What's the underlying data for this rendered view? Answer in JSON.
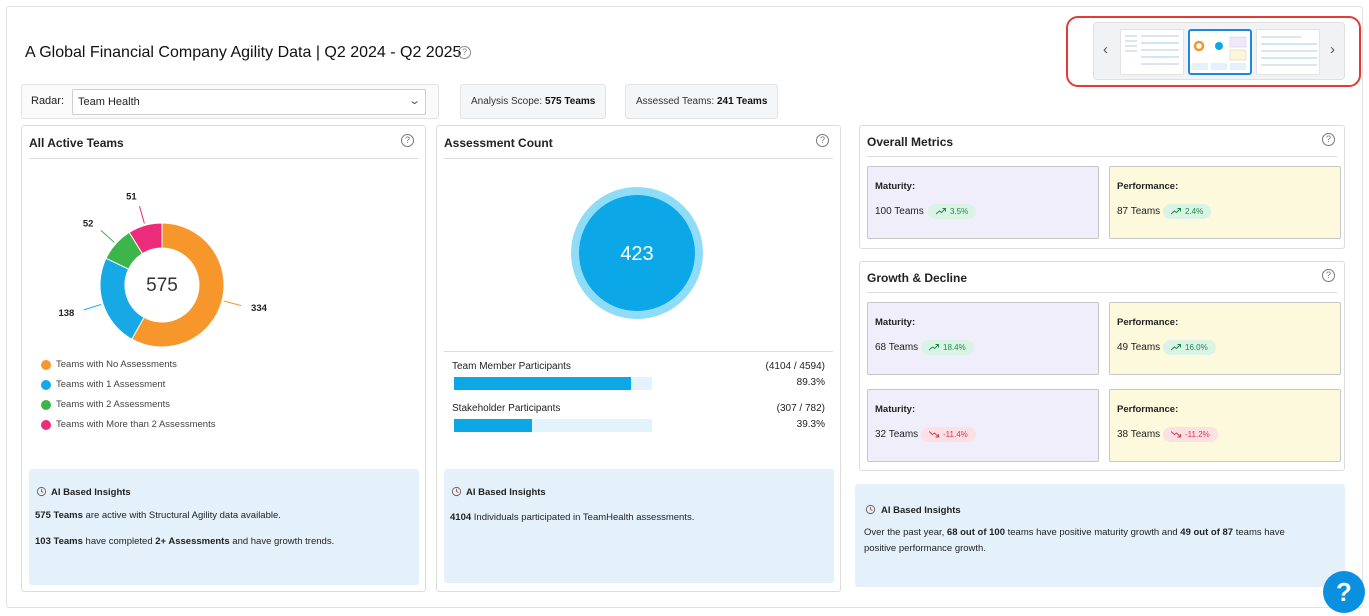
{
  "page": {
    "title": "A Global Financial Company Agility Data | Q2 2024 - Q2 2025"
  },
  "filters": {
    "radar_label": "Radar:",
    "radar_value": "Team Health",
    "analysis_scope_label": "Analysis Scope:",
    "analysis_scope_value": "575 Teams",
    "assessed_teams_label": "Assessed Teams:",
    "assessed_teams_value": "241 Teams"
  },
  "active_teams": {
    "title": "All Active Teams",
    "total": "575",
    "segments": [
      {
        "name": "Teams with No Assessments",
        "value": 334,
        "label": "334",
        "color": "#f7972b"
      },
      {
        "name": "Teams with 1 Assessment",
        "value": 138,
        "label": "138",
        "color": "#17a9e6"
      },
      {
        "name": "Teams with 2 Assessments",
        "value": 52,
        "label": "52",
        "color": "#3cb54a"
      },
      {
        "name": "Teams with More than 2 Assessments",
        "value": 51,
        "label": "51",
        "color": "#ec2c7a"
      }
    ],
    "insights": {
      "heading": "AI Based Insights",
      "line1_bold": "575 Teams",
      "line1_rest": " are active with Structural Agility data available.",
      "line2_bold": "103 Teams",
      "line2_mid": " have completed ",
      "line2_bold2": "2+ Assessments",
      "line2_rest": " and have growth trends."
    }
  },
  "assessment_count": {
    "title": "Assessment Count",
    "total": "423",
    "participants": [
      {
        "label": "Team Member Participants",
        "ratio": "(4104 / 4594)",
        "percent_text": "89.3%",
        "fraction": 0.893
      },
      {
        "label": "Stakeholder Participants",
        "ratio": "(307 / 782)",
        "percent_text": "39.3%",
        "fraction": 0.393
      }
    ],
    "insights": {
      "heading": "AI Based Insights",
      "line1_bold": "4104",
      "line1_rest": " Individuals participated in TeamHealth assessments."
    }
  },
  "overall_metrics": {
    "title": "Overall Metrics",
    "cards": [
      {
        "label": "Maturity:",
        "teams": "100 Teams",
        "delta": "3.5%",
        "trend": "up"
      },
      {
        "label": "Performance:",
        "teams": "87 Teams",
        "delta": "2.4%",
        "trend": "up"
      }
    ]
  },
  "growth_decline": {
    "title": "Growth & Decline",
    "cards": [
      {
        "label": "Maturity:",
        "teams": "68 Teams",
        "delta": "18.4%",
        "trend": "up"
      },
      {
        "label": "Performance:",
        "teams": "49 Teams",
        "delta": "16.0%",
        "trend": "up"
      },
      {
        "label": "Maturity:",
        "teams": "32 Teams",
        "delta": "-11.4%",
        "trend": "down"
      },
      {
        "label": "Performance:",
        "teams": "38 Teams",
        "delta": "-11.2%",
        "trend": "down"
      }
    ]
  },
  "metrics_insights": {
    "heading": "AI Based Insights",
    "t1": "Over the past year, ",
    "b1": "68 out of 100",
    "t2": " teams have positive maturity growth and ",
    "b2": "49 out of 87",
    "t3": " teams have",
    "line2": "positive performance growth."
  },
  "help_fab_label": "?",
  "help_glyph": "?",
  "colors": {
    "accent": "#0ba7e6",
    "highlight": "#e53935",
    "up": "#1f8a4c",
    "down": "#d23b4b"
  }
}
